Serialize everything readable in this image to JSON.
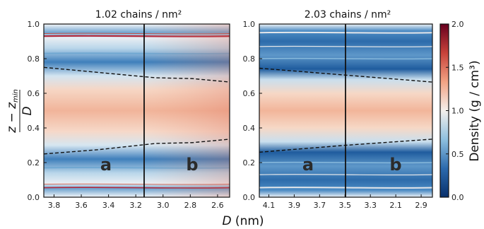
{
  "chart_data": [
    {
      "type": "heatmap",
      "title": "1.02 chains / nm²",
      "xticks": [
        "3.8",
        "3.6",
        "3.4",
        "3.2",
        "3.0",
        "2.8",
        "2.6"
      ],
      "yticks": [
        "0.0",
        "0.2",
        "0.4",
        "0.6",
        "0.8",
        "1.0"
      ],
      "ylim": [
        0,
        1
      ],
      "divider_label_left": "a",
      "divider_label_right": "b",
      "upper_dashed_boundary": [
        [
          0,
          0.75
        ],
        [
          0.3,
          0.72
        ],
        [
          0.6,
          0.69
        ],
        [
          0.8,
          0.685
        ],
        [
          1.0,
          0.665
        ]
      ],
      "lower_dashed_boundary": [
        [
          0,
          0.25
        ],
        [
          0.3,
          0.275
        ],
        [
          0.6,
          0.31
        ],
        [
          0.8,
          0.315
        ],
        [
          1.0,
          0.335
        ]
      ]
    },
    {
      "type": "heatmap",
      "title": "2.03 chains / nm²",
      "xticks": [
        "4.1",
        "3.9",
        "3.7",
        "3.5",
        "3.3",
        "2.1",
        "2.9"
      ],
      "yticks": [
        "0.0",
        "0.2",
        "0.4",
        "0.6",
        "0.8",
        "1.0"
      ],
      "ylim": [
        0,
        1
      ],
      "divider_label_left": "a",
      "divider_label_right": "b",
      "upper_dashed_boundary": [
        [
          0,
          0.745
        ],
        [
          0.5,
          0.705
        ],
        [
          1.0,
          0.665
        ]
      ],
      "lower_dashed_boundary": [
        [
          0,
          0.26
        ],
        [
          0.5,
          0.3
        ],
        [
          1.0,
          0.335
        ]
      ]
    }
  ],
  "shared": {
    "xlabel": "D (nm)",
    "ylabel_top": "z − z",
    "ylabel_sub": "min",
    "ylabel_bottom": "D"
  },
  "colorbar": {
    "label": "Density (g / cm³)",
    "ticks": [
      "0.0",
      "0.5",
      "1.0",
      "1.5",
      "2.0"
    ],
    "range": [
      0,
      2
    ],
    "colors": [
      "#08306b",
      "#2c6aad",
      "#8ec0df",
      "#f4f0ec",
      "#f2a283",
      "#c8423a",
      "#67001f"
    ]
  }
}
